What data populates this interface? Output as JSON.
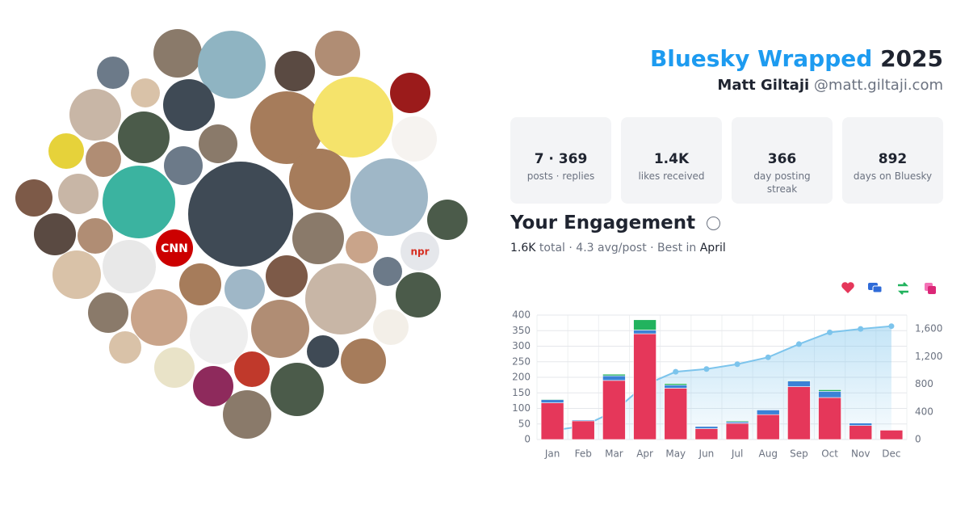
{
  "header": {
    "brand": "Bluesky Wrapped",
    "year": "2025",
    "name": "Matt Giltaji",
    "handle": "@matt.giltaji.com"
  },
  "stats": [
    {
      "value": "7 · 369",
      "label": "posts · replies"
    },
    {
      "value": "1.4K",
      "label": "likes received"
    },
    {
      "value": "366",
      "label": "day posting streak"
    },
    {
      "value": "892",
      "label": "days on Bluesky"
    }
  ],
  "engagement": {
    "title": "Your Engagement",
    "total": "1.6K",
    "total_label": "total ·",
    "avg": "4.3",
    "avg_label": "avg/post · Best in",
    "best": "April"
  },
  "avatar_logos": [
    "CNN",
    "npr"
  ],
  "chart_data": {
    "type": "bar",
    "categories": [
      "Jan",
      "Feb",
      "Mar",
      "Apr",
      "May",
      "Jun",
      "Jul",
      "Aug",
      "Sep",
      "Oct",
      "Nov",
      "Dec"
    ],
    "series": [
      {
        "color": "#e5375a",
        "values": [
          118,
          60,
          190,
          340,
          165,
          35,
          52,
          80,
          170,
          135,
          45,
          30
        ]
      },
      {
        "color": "#3b82d6",
        "values": [
          10,
          3,
          15,
          12,
          10,
          7,
          5,
          15,
          18,
          20,
          8,
          0
        ]
      },
      {
        "color": "#22b35e",
        "values": [
          2,
          0,
          5,
          33,
          5,
          0,
          3,
          0,
          2,
          5,
          0,
          0
        ]
      },
      {
        "color": "#7cc4ec",
        "type": "line",
        "axis": "y2",
        "values": [
          130,
          195,
          405,
          790,
          980,
          1020,
          1090,
          1190,
          1380,
          1550,
          1600,
          1640
        ]
      }
    ],
    "ylim": [
      0,
      400
    ],
    "yticks": [
      0,
      50,
      100,
      150,
      200,
      250,
      300,
      350,
      400
    ],
    "y2lim": [
      0,
      1800
    ],
    "y2ticks": [
      0,
      400,
      800,
      {
        "value": 1200,
        "label": "1,200"
      },
      {
        "value": 1600,
        "label": "1,600"
      }
    ],
    "grid": true
  }
}
